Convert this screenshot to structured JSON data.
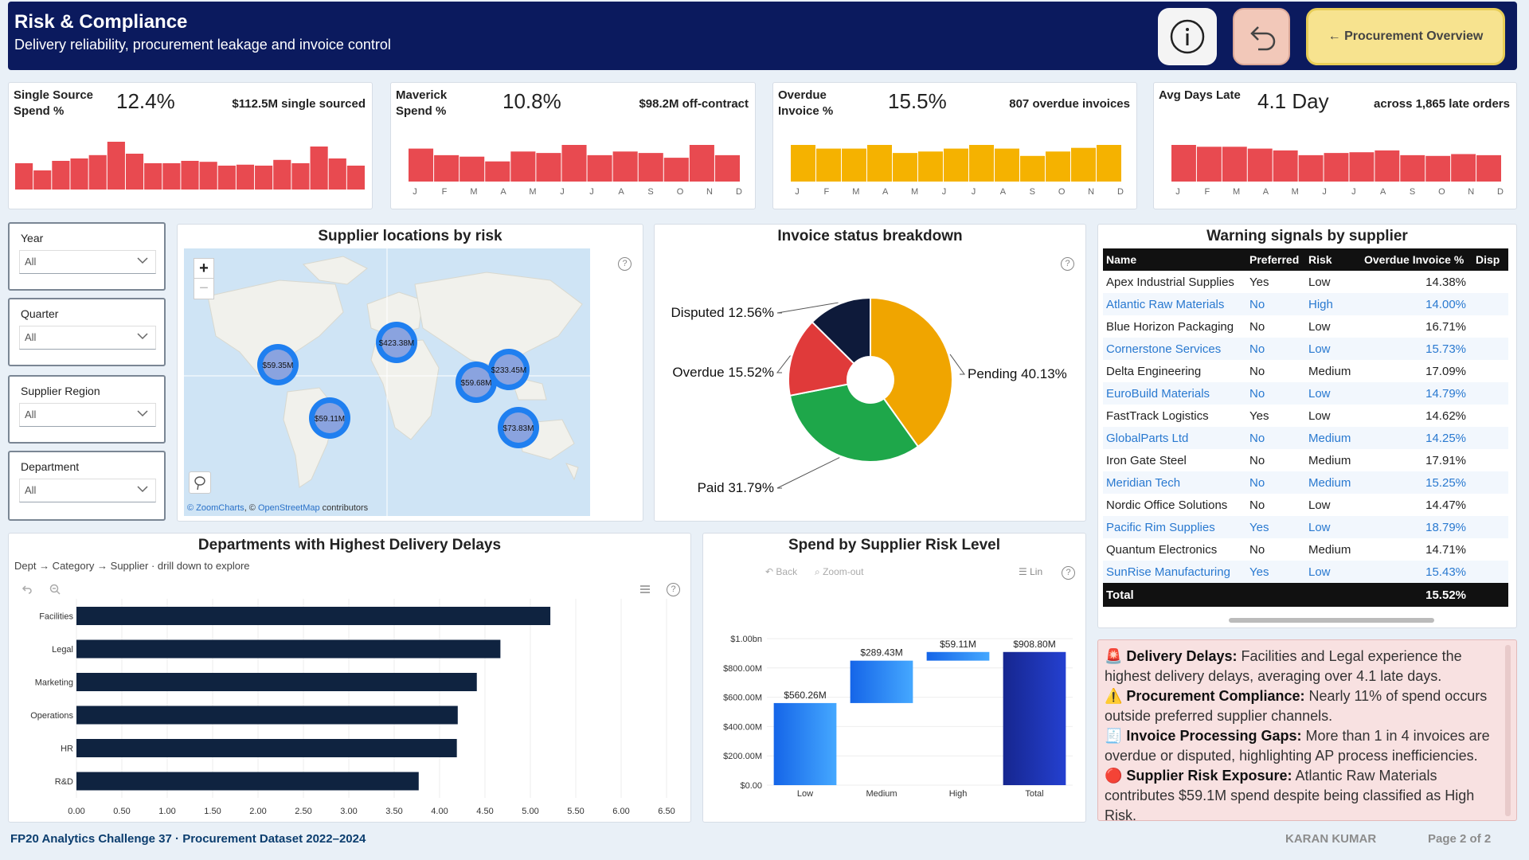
{
  "header": {
    "title": "Risk & Compliance",
    "subtitle": "Delivery reliability, procurement leakage and invoice control",
    "nav_label": "← Procurement Overview",
    "info_icon": "info-icon",
    "back_icon": "undo-arrow-icon"
  },
  "kpis": [
    {
      "label_l1": "Single Source",
      "label_l2": "Spend %",
      "value": "12.4%",
      "sub": "$112.5M single sourced",
      "color": "#e84a50",
      "months": [],
      "bars": [
        0.55,
        0.4,
        0.6,
        0.65,
        0.72,
        1.0,
        0.75,
        0.55,
        0.55,
        0.6,
        0.58,
        0.5,
        0.52,
        0.5,
        0.62,
        0.55,
        0.9,
        0.65,
        0.5
      ]
    },
    {
      "label_l1": "Maverick",
      "label_l2": "Spend %",
      "value": "10.8%",
      "sub": "$98.2M off-contract",
      "color": "#e84a50",
      "months": [
        "J",
        "F",
        "M",
        "A",
        "M",
        "J",
        "J",
        "A",
        "S",
        "O",
        "N",
        "D"
      ],
      "bars": [
        0.9,
        0.72,
        0.68,
        0.55,
        0.82,
        0.78,
        1.0,
        0.72,
        0.82,
        0.78,
        0.65,
        1.0,
        0.72
      ]
    },
    {
      "label_l1": "Overdue",
      "label_l2": "Invoice %",
      "value": "15.5%",
      "sub": "807 overdue invoices",
      "color": "#f5b200",
      "months": [
        "J",
        "F",
        "M",
        "A",
        "M",
        "J",
        "J",
        "A",
        "S",
        "O",
        "N",
        "D"
      ],
      "bars": [
        1.0,
        0.9,
        0.9,
        1.0,
        0.78,
        0.82,
        0.9,
        1.0,
        0.9,
        0.7,
        0.82,
        0.92,
        1.0
      ]
    },
    {
      "label_l1": "Avg Days Late",
      "label_l2": "",
      "value": "4.1 Day",
      "sub": "across 1,865 late orders",
      "color": "#e84a50",
      "months": [
        "J",
        "F",
        "M",
        "A",
        "M",
        "J",
        "J",
        "A",
        "S",
        "O",
        "N",
        "D"
      ],
      "bars": [
        1.0,
        0.95,
        0.95,
        0.9,
        0.85,
        0.72,
        0.78,
        0.8,
        0.85,
        0.72,
        0.7,
        0.75,
        0.72
      ]
    }
  ],
  "slicers": [
    {
      "label": "Year",
      "value": "All"
    },
    {
      "label": "Quarter",
      "value": "All"
    },
    {
      "label": "Supplier Region",
      "value": "All"
    },
    {
      "label": "Department",
      "value": "All"
    }
  ],
  "map": {
    "title": "Supplier locations by risk",
    "zoom_in": "+",
    "zoom_out": "−",
    "attribution_zc": "© ZoomCharts",
    "attribution_sep": ", © ",
    "attribution_osm": "OpenStreetMap",
    "attribution_end": " contributors",
    "bubbles": [
      {
        "label": "$59.35M"
      },
      {
        "label": "$423.38M"
      },
      {
        "label": "$59.11M"
      },
      {
        "label": "$59.68M"
      },
      {
        "label": "$233.45M"
      },
      {
        "label": "$73.83M"
      }
    ]
  },
  "invoice": {
    "title": "Invoice status breakdown",
    "slices": [
      {
        "name": "Pending",
        "pct": 40.13,
        "label": "Pending 40.13%",
        "color": "#f0a500"
      },
      {
        "name": "Paid",
        "pct": 31.79,
        "label": "Paid 31.79%",
        "color": "#1ea74a"
      },
      {
        "name": "Overdue",
        "pct": 15.52,
        "label": "Overdue 15.52%",
        "color": "#e03a3a"
      },
      {
        "name": "Disputed",
        "pct": 12.56,
        "label": "Disputed 12.56%",
        "color": "#0e1a3a"
      }
    ]
  },
  "warning": {
    "title": "Warning signals by supplier",
    "columns": [
      "Name",
      "Preferred",
      "Risk",
      "Overdue Invoice %",
      "Disp"
    ],
    "rows": [
      [
        "Apex Industrial Supplies",
        "Yes",
        "Low",
        "14.38%"
      ],
      [
        "Atlantic Raw Materials",
        "No",
        "High",
        "14.00%"
      ],
      [
        "Blue Horizon Packaging",
        "No",
        "Low",
        "16.71%"
      ],
      [
        "Cornerstone Services",
        "No",
        "Low",
        "15.73%"
      ],
      [
        "Delta Engineering",
        "No",
        "Medium",
        "17.09%"
      ],
      [
        "EuroBuild Materials",
        "No",
        "Low",
        "14.79%"
      ],
      [
        "FastTrack Logistics",
        "Yes",
        "Low",
        "14.62%"
      ],
      [
        "GlobalParts Ltd",
        "No",
        "Medium",
        "14.25%"
      ],
      [
        "Iron Gate Steel",
        "No",
        "Medium",
        "17.91%"
      ],
      [
        "Meridian Tech",
        "No",
        "Medium",
        "15.25%"
      ],
      [
        "Nordic Office Solutions",
        "No",
        "Low",
        "14.47%"
      ],
      [
        "Pacific Rim Supplies",
        "Yes",
        "Low",
        "18.79%"
      ],
      [
        "Quantum Electronics",
        "No",
        "Medium",
        "14.71%"
      ],
      [
        "SunRise Manufacturing",
        "Yes",
        "Low",
        "15.43%"
      ]
    ],
    "total_label": "Total",
    "total_value": "15.52%"
  },
  "delays": {
    "title": "Departments with Highest Delivery Delays",
    "subtitle": "Dept → Category → Supplier · drill down to explore",
    "categories": [
      "Facilities",
      "Legal",
      "Marketing",
      "Operations",
      "HR",
      "R&D"
    ],
    "values": [
      5.22,
      4.67,
      4.41,
      4.2,
      4.19,
      3.77
    ],
    "ticks": [
      "0.00",
      "0.50",
      "1.00",
      "1.50",
      "2.00",
      "2.50",
      "3.00",
      "3.50",
      "4.00",
      "4.50",
      "5.00",
      "5.50",
      "6.00",
      "6.50"
    ],
    "xlim": [
      0,
      6.5
    ]
  },
  "waterfall": {
    "title": "Spend by Supplier Risk Level",
    "back_label": "Back",
    "zoom_label": "Zoom-out",
    "lin_label": "Lin",
    "categories": [
      "Low",
      "Medium",
      "High",
      "Total"
    ],
    "values": [
      560.26,
      289.43,
      59.11,
      908.8
    ],
    "labels": [
      "$560.26M",
      "$289.43M",
      "$59.11M",
      "$908.80M"
    ],
    "yticks": [
      "$0.00",
      "$200.00M",
      "$400.00M",
      "$600.00M",
      "$800.00M",
      "$1.00bn"
    ],
    "ylim": [
      0,
      1000
    ]
  },
  "insights": [
    {
      "icon": "🚨",
      "head": "Delivery Delays:",
      "text": " Facilities and Legal experience the highest delivery delays, averaging over 4.1 late days."
    },
    {
      "icon": "⚠️",
      "head": "Procurement Compliance:",
      "text": " Nearly 11% of spend occurs outside preferred supplier channels."
    },
    {
      "icon": "🧾",
      "head": "Invoice Processing Gaps:",
      "text": " More than 1 in 4 invoices are overdue or disputed, highlighting AP process inefficiencies."
    },
    {
      "icon": "🔴",
      "head": "Supplier Risk Exposure:",
      "text": " Atlantic Raw Materials contributes $59.1M spend despite being classified as High Risk."
    }
  ],
  "footer": {
    "left": "FP20 Analytics Challenge 37 · Procurement Dataset 2022–2024",
    "author": "KARAN KUMAR",
    "page": "Page 2 of 2"
  }
}
